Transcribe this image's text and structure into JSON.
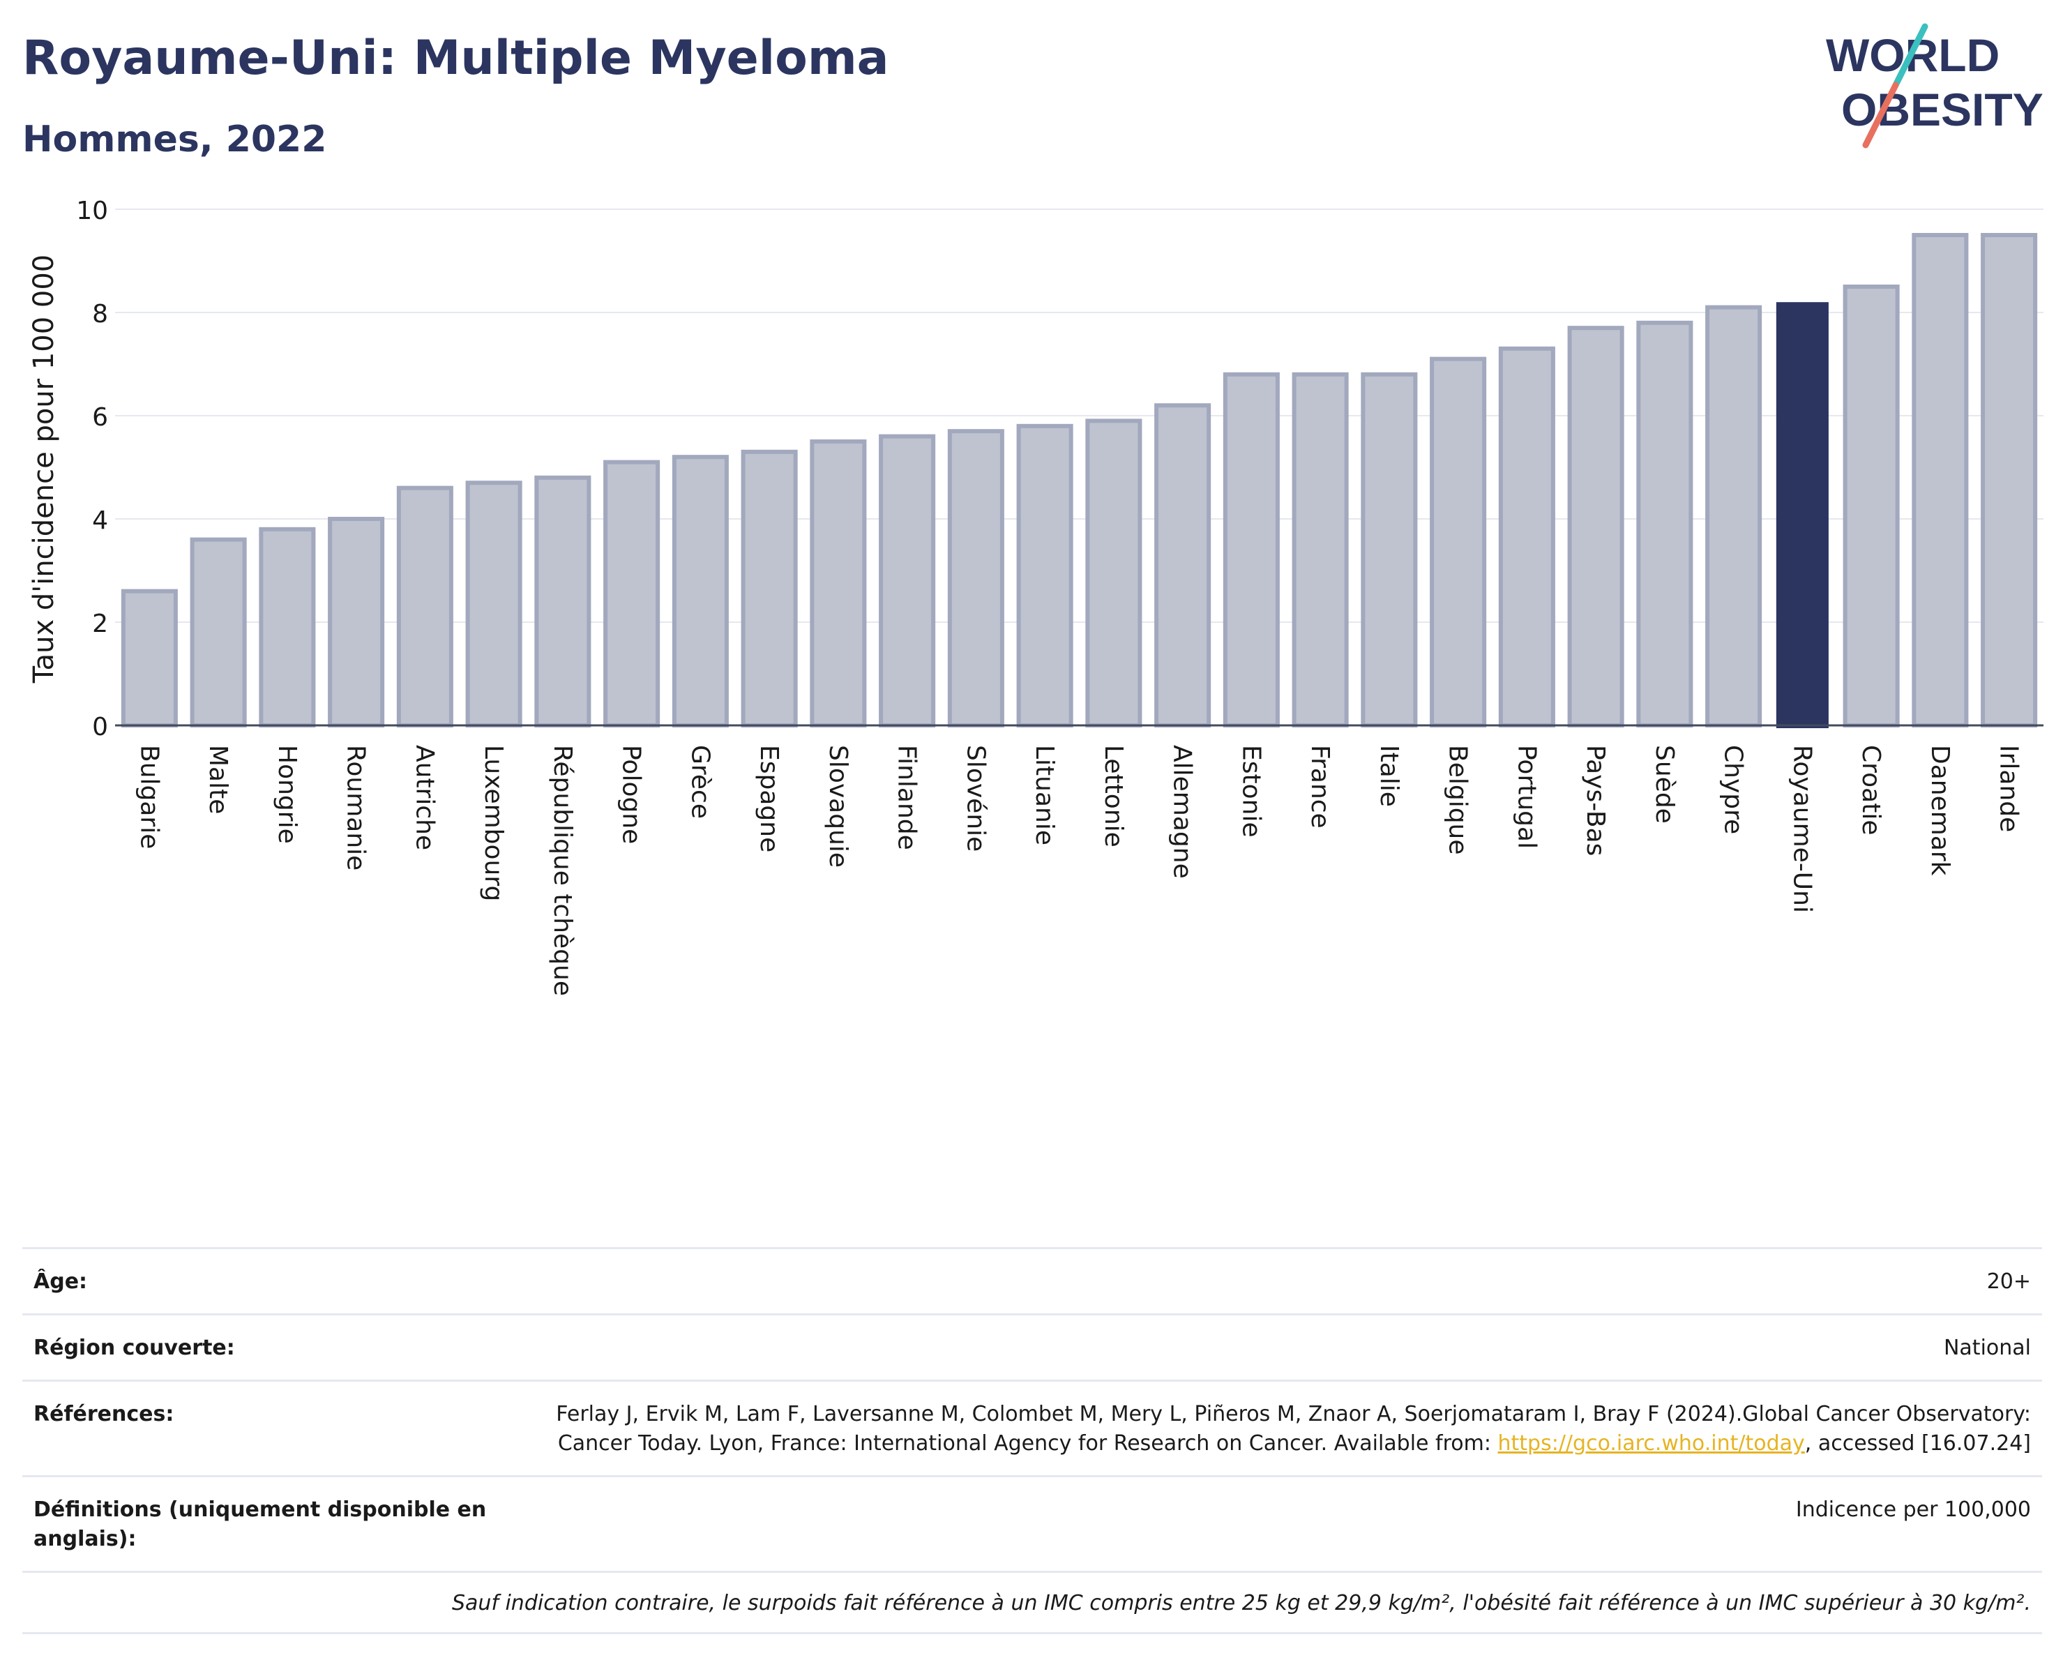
{
  "header": {
    "title": "Royaume-Uni: Multiple Myeloma",
    "subtitle": "Hommes, 2022",
    "logo_line1": "WORLD",
    "logo_line2": "OBESITY"
  },
  "chart_data": {
    "type": "bar",
    "title": "Royaume-Uni: Multiple Myeloma",
    "subtitle": "Hommes, 2022",
    "ylabel": "Taux d'incidence pour 100 000",
    "xlabel": "",
    "ylim": [
      0,
      10
    ],
    "yticks": [
      0,
      2,
      4,
      6,
      8,
      10
    ],
    "grid": true,
    "highlight": "Royaume-Uni",
    "categories": [
      "Bulgarie",
      "Malte",
      "Hongrie",
      "Roumanie",
      "Autriche",
      "Luxembourg",
      "République tchèque",
      "Pologne",
      "Grèce",
      "Espagne",
      "Slovaquie",
      "Finlande",
      "Slovénie",
      "Lituanie",
      "Lettonie",
      "Allemagne",
      "Estonie",
      "France",
      "Italie",
      "Belgique",
      "Portugal",
      "Pays-Bas",
      "Suède",
      "Chypre",
      "Royaume-Uni",
      "Croatie",
      "Danemark",
      "Irlande"
    ],
    "values": [
      2.6,
      3.6,
      3.8,
      4.0,
      4.6,
      4.7,
      4.8,
      5.1,
      5.2,
      5.3,
      5.5,
      5.6,
      5.7,
      5.8,
      5.9,
      6.2,
      6.8,
      6.8,
      6.8,
      7.1,
      7.3,
      7.7,
      7.8,
      8.1,
      8.2,
      8.5,
      9.5,
      9.5
    ]
  },
  "colors": {
    "bar": "#bfc3d0",
    "bar_border": "#a2a8bd",
    "highlight": "#2b3560",
    "grid": "#e6e8ee",
    "text": "#1a1a1a",
    "logo_teal": "#3bbfbf",
    "logo_coral": "#e8705f"
  },
  "info": {
    "age_label": "Âge:",
    "age_value": "20+",
    "region_label": "Région couverte:",
    "region_value": "National",
    "ref_label": "Références:",
    "ref_text_1": "Ferlay J, Ervik M, Lam F, Laversanne M, Colombet M, Mery L, Piñeros M, Znaor A, Soerjomataram I, Bray F (2024).Global Cancer Observatory: Cancer Today. Lyon, France: International Agency for Research on Cancer. Available from: ",
    "ref_link": "https://gco.iarc.who.int/today",
    "ref_text_2": ", accessed [16.07.24]",
    "def_label": "Définitions (uniquement disponible en anglais):",
    "def_value": "Indicence per 100,000",
    "note": "Sauf indication contraire, le surpoids fait référence à un IMC compris entre 25 kg et 29,9 kg/m², l'obésité fait référence à un IMC supérieur à 30 kg/m²."
  }
}
